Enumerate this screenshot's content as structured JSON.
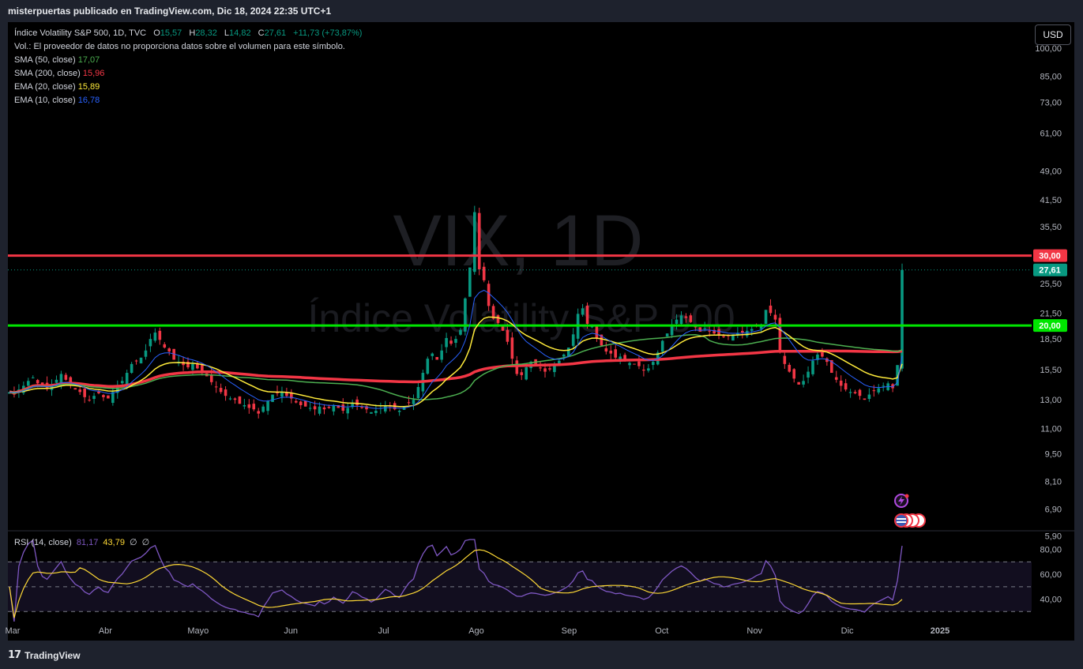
{
  "header": {
    "publisher_line": "misterpuertas publicado en TradingView.com, Dic 18, 2024 22:35 UTC+1"
  },
  "legend": {
    "symbol": "Índice Volatility S&P 500, 1D, TVC",
    "o_label": "O",
    "o_value": "15,57",
    "h_label": "H",
    "h_value": "28,32",
    "l_label": "L",
    "l_value": "14,82",
    "c_label": "C",
    "c_value": "27,61",
    "change": "+11,73 (+73,87%)",
    "volume_note": "Vol.: El proveedor de datos no proporciona datos sobre el volumen para este símbolo.",
    "indicators": [
      {
        "label": "SMA (50, close)",
        "value": "17,07",
        "color": "#4caf50"
      },
      {
        "label": "SMA (200, close)",
        "value": "15,96",
        "color": "#f23645"
      },
      {
        "label": "EMA (20, close)",
        "value": "15,89",
        "color": "#ffeb3b"
      },
      {
        "label": "EMA (10, close)",
        "value": "16,78",
        "color": "#2962ff"
      }
    ]
  },
  "currency_button": "USD",
  "watermark": {
    "ticker": "VIX, 1D",
    "name": "Índice Volatility S&P 500"
  },
  "price_axis": {
    "ticks": [
      "100,00",
      "85,00",
      "73,00",
      "61,00",
      "49,00",
      "41,50",
      "35,50",
      "30,00",
      "25,50",
      "21,50",
      "18,50",
      "15,50",
      "13,00",
      "11,00",
      "9,50",
      "8,10",
      "6,90",
      "5,90"
    ],
    "tick_values": [
      100,
      85,
      73,
      61,
      49,
      41.5,
      35.5,
      30,
      25.5,
      21.5,
      18.5,
      15.5,
      13,
      11,
      9.5,
      8.1,
      6.9,
      5.9
    ],
    "badges": [
      {
        "label": "30,00",
        "value": 30,
        "color": "#f23645"
      },
      {
        "label": "27,61",
        "value": 27.61,
        "color": "#089981"
      },
      {
        "label": "20,00",
        "value": 20,
        "color": "#00e600"
      }
    ]
  },
  "horizontal_lines": [
    {
      "value": 30,
      "color": "#f23645"
    },
    {
      "value": 20,
      "color": "#00e600"
    }
  ],
  "time_axis": {
    "labels": [
      "Mar",
      "Abr",
      "Mayo",
      "Jun",
      "Jul",
      "Ago",
      "Sep",
      "Oct",
      "Nov",
      "Dic",
      "2025"
    ]
  },
  "rsi": {
    "legend_label": "RSI (14, close)",
    "rsi_value": "81,17",
    "ma_value": "43,79",
    "extra1": "∅",
    "extra2": "∅",
    "ticks": [
      "80,00",
      "60,00",
      "40,00"
    ],
    "tick_values": [
      80,
      60,
      40
    ],
    "bands": [
      70,
      50,
      30
    ],
    "line_color": "#7e57c2",
    "ma_color": "#fdd835"
  },
  "footer": {
    "brand": "TradingView",
    "mark": "17"
  },
  "colors": {
    "up": "#089981",
    "down": "#f23645",
    "background": "#000000"
  },
  "chart_data": {
    "type": "candlestick",
    "title": "Índice Volatility S&P 500, 1D, TVC",
    "scale": "log",
    "ylim": [
      5.6,
      110
    ],
    "grid": false,
    "x_labels": [
      "Mar",
      "Abr",
      "Mayo",
      "Jun",
      "Jul",
      "Ago",
      "Sep",
      "Oct",
      "Nov",
      "Dic",
      "2025"
    ],
    "close_series": [
      13.6,
      13.4,
      13.8,
      14.1,
      14.5,
      14.8,
      14.3,
      14.0,
      13.9,
      14.2,
      14.6,
      15.1,
      14.6,
      14.2,
      13.8,
      13.6,
      13.2,
      13.0,
      13.3,
      13.5,
      13.2,
      13.1,
      13.6,
      14.1,
      14.5,
      15.2,
      16.0,
      16.3,
      16.6,
      17.3,
      18.5,
      19.2,
      18.4,
      17.6,
      17.2,
      16.4,
      16.2,
      15.9,
      15.7,
      16.0,
      15.6,
      15.3,
      14.9,
      14.4,
      14.0,
      13.6,
      13.3,
      13.1,
      13.0,
      12.7,
      12.6,
      12.4,
      12.3,
      12.0,
      12.5,
      12.9,
      13.4,
      13.5,
      13.6,
      13.3,
      13.1,
      12.8,
      12.6,
      12.5,
      12.4,
      12.3,
      12.5,
      12.3,
      12.4,
      12.6,
      12.4,
      12.2,
      12.4,
      12.7,
      12.6,
      12.4,
      12.3,
      12.1,
      12.2,
      12.4,
      12.6,
      12.5,
      12.3,
      12.2,
      12.5,
      12.8,
      13.0,
      14.0,
      15.2,
      16.5,
      17.0,
      16.4,
      17.3,
      18.6,
      18.0,
      18.5,
      19.5,
      23.4,
      28.0,
      38.6,
      27.7,
      26.0,
      22.4,
      20.8,
      20.3,
      19.4,
      18.2,
      16.5,
      15.1,
      15.0,
      15.7,
      16.2,
      16.0,
      15.6,
      15.3,
      15.5,
      15.9,
      16.3,
      16.9,
      17.6,
      19.0,
      21.4,
      22.1,
      20.2,
      19.9,
      18.6,
      17.8,
      17.2,
      17.0,
      16.6,
      16.7,
      16.3,
      16.1,
      16.0,
      15.8,
      15.4,
      15.6,
      16.2,
      17.1,
      18.3,
      19.1,
      20.0,
      20.7,
      21.2,
      20.9,
      20.4,
      19.8,
      19.3,
      19.7,
      19.4,
      19.1,
      19.0,
      18.7,
      18.8,
      19.0,
      19.1,
      19.2,
      19.4,
      19.6,
      19.9,
      20.1,
      21.9,
      21.5,
      20.7,
      17.2,
      16.0,
      15.3,
      14.7,
      14.2,
      14.5,
      15.3,
      16.3,
      16.9,
      16.7,
      16.2,
      15.2,
      14.6,
      14.1,
      13.8,
      13.6,
      13.5,
      13.3,
      13.0,
      13.4,
      13.7,
      13.9,
      14.1,
      14.3,
      13.9,
      15.9,
      27.61
    ]
  }
}
